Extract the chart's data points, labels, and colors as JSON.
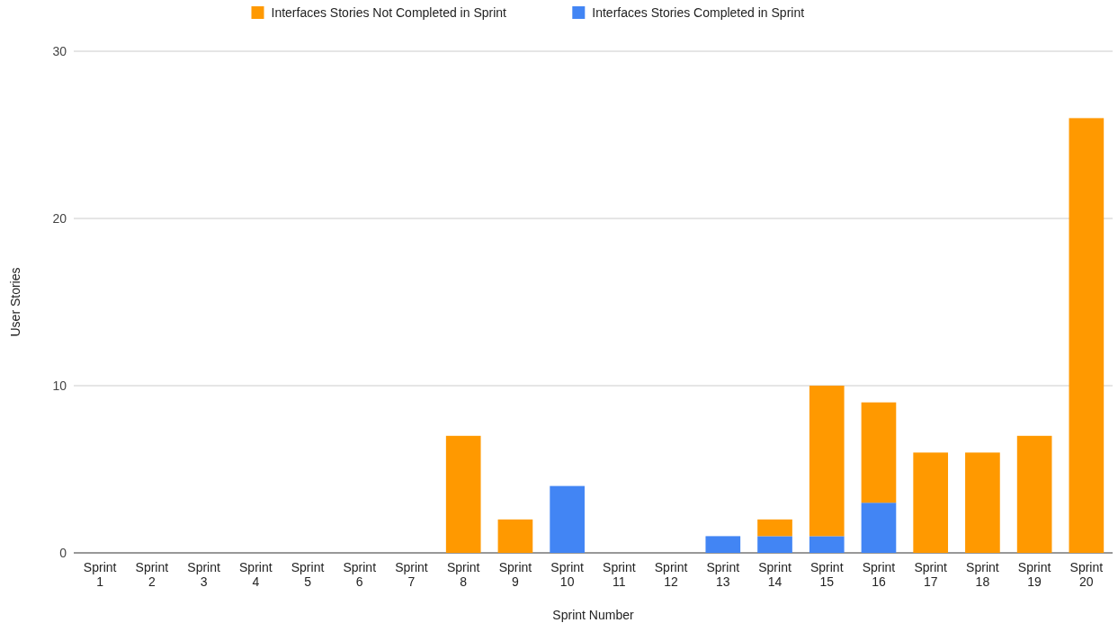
{
  "chart_data": {
    "type": "bar",
    "stacked": true,
    "xlabel": "Sprint Number",
    "ylabel": "User Stories",
    "categories": [
      "Sprint 1",
      "Sprint 2",
      "Sprint 3",
      "Sprint 4",
      "Sprint 5",
      "Sprint 6",
      "Sprint 7",
      "Sprint 8",
      "Sprint 9",
      "Sprint 10",
      "Sprint 11",
      "Sprint 12",
      "Sprint 13",
      "Sprint 14",
      "Sprint 15",
      "Sprint 16",
      "Sprint 17",
      "Sprint 18",
      "Sprint 19",
      "Sprint 20"
    ],
    "series": [
      {
        "name": "Interfaces Stories Completed in Sprint",
        "color": "#4285f4",
        "values": [
          0,
          0,
          0,
          0,
          0,
          0,
          0,
          0,
          0,
          4,
          0,
          0,
          1,
          1,
          1,
          3,
          0,
          0,
          0,
          0
        ]
      },
      {
        "name": "Interfaces Stories Not Completed in Sprint",
        "color": "#ff9900",
        "values": [
          0,
          0,
          0,
          0,
          0,
          0,
          0,
          7,
          2,
          0,
          0,
          0,
          0,
          1,
          9,
          6,
          6,
          6,
          7,
          26
        ]
      }
    ],
    "ylim": [
      0,
      30
    ],
    "yticks": [
      0,
      10,
      20,
      30
    ],
    "grid": true,
    "legend": "top"
  }
}
